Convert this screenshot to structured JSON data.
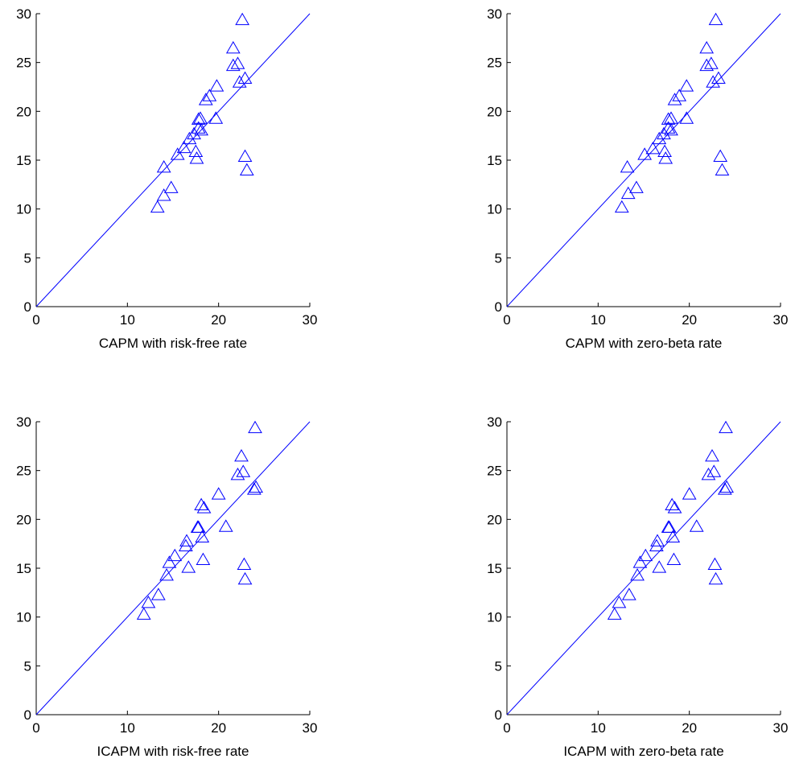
{
  "chart_data": [
    {
      "type": "scatter",
      "xlabel": "CAPM with risk-free rate",
      "ylabel": "",
      "xlim": [
        0,
        30
      ],
      "ylim": [
        0,
        30
      ],
      "xticks": [
        0,
        10,
        20,
        30
      ],
      "yticks": [
        0,
        5,
        10,
        15,
        20,
        25,
        30
      ],
      "marker": "triangle",
      "color": "#0000ff",
      "reference_line": {
        "from": [
          0,
          0
        ],
        "to": [
          30,
          30
        ]
      },
      "points": [
        [
          13.3,
          10.2
        ],
        [
          14.0,
          11.4
        ],
        [
          14.8,
          12.2
        ],
        [
          14.0,
          14.3
        ],
        [
          15.5,
          15.6
        ],
        [
          16.2,
          16.3
        ],
        [
          16.8,
          17.2
        ],
        [
          17.3,
          17.7
        ],
        [
          17.8,
          18.3
        ],
        [
          18.1,
          18.1
        ],
        [
          17.8,
          19.2
        ],
        [
          18.0,
          19.3
        ],
        [
          17.5,
          15.9
        ],
        [
          17.6,
          15.2
        ],
        [
          18.6,
          21.2
        ],
        [
          19.0,
          21.6
        ],
        [
          19.8,
          22.6
        ],
        [
          19.7,
          19.3
        ],
        [
          21.6,
          24.7
        ],
        [
          21.6,
          26.5
        ],
        [
          22.1,
          24.9
        ],
        [
          22.3,
          23.0
        ],
        [
          22.9,
          23.4
        ],
        [
          22.6,
          29.4
        ],
        [
          22.9,
          15.4
        ],
        [
          23.1,
          14.0
        ]
      ]
    },
    {
      "type": "scatter",
      "xlabel": "CAPM with zero-beta rate",
      "ylabel": "",
      "xlim": [
        0,
        30
      ],
      "ylim": [
        0,
        30
      ],
      "xticks": [
        0,
        10,
        20,
        30
      ],
      "yticks": [
        0,
        5,
        10,
        15,
        20,
        25,
        30
      ],
      "marker": "triangle",
      "color": "#0000ff",
      "reference_line": {
        "from": [
          0,
          0
        ],
        "to": [
          30,
          30
        ]
      },
      "points": [
        [
          12.6,
          10.2
        ],
        [
          13.3,
          11.6
        ],
        [
          14.2,
          12.2
        ],
        [
          13.2,
          14.3
        ],
        [
          15.1,
          15.6
        ],
        [
          16.0,
          16.2
        ],
        [
          16.7,
          17.2
        ],
        [
          17.2,
          17.7
        ],
        [
          17.7,
          18.3
        ],
        [
          18.0,
          18.1
        ],
        [
          17.7,
          19.2
        ],
        [
          18.0,
          19.3
        ],
        [
          17.3,
          15.9
        ],
        [
          17.4,
          15.2
        ],
        [
          18.4,
          21.2
        ],
        [
          18.9,
          21.6
        ],
        [
          19.7,
          22.6
        ],
        [
          19.7,
          19.3
        ],
        [
          21.9,
          24.7
        ],
        [
          21.9,
          26.5
        ],
        [
          22.4,
          24.9
        ],
        [
          22.6,
          23.0
        ],
        [
          23.2,
          23.4
        ],
        [
          22.9,
          29.4
        ],
        [
          23.4,
          15.4
        ],
        [
          23.6,
          14.0
        ]
      ]
    },
    {
      "type": "scatter",
      "xlabel": "ICAPM with risk-free rate",
      "ylabel": "",
      "xlim": [
        0,
        30
      ],
      "ylim": [
        0,
        30
      ],
      "xticks": [
        0,
        10,
        20,
        30
      ],
      "yticks": [
        0,
        5,
        10,
        15,
        20,
        25,
        30
      ],
      "marker": "triangle",
      "color": "#0000ff",
      "reference_line": {
        "from": [
          0,
          0
        ],
        "to": [
          30,
          30
        ]
      },
      "points": [
        [
          11.8,
          10.3
        ],
        [
          12.3,
          11.5
        ],
        [
          13.4,
          12.3
        ],
        [
          14.3,
          14.3
        ],
        [
          14.6,
          15.6
        ],
        [
          15.2,
          16.3
        ],
        [
          16.4,
          17.3
        ],
        [
          16.5,
          17.8
        ],
        [
          17.7,
          19.2
        ],
        [
          17.8,
          19.2
        ],
        [
          18.2,
          18.2
        ],
        [
          16.7,
          15.1
        ],
        [
          18.3,
          15.9
        ],
        [
          18.1,
          21.5
        ],
        [
          18.4,
          21.2
        ],
        [
          20.0,
          22.6
        ],
        [
          20.8,
          19.3
        ],
        [
          22.1,
          24.6
        ],
        [
          22.5,
          26.5
        ],
        [
          22.7,
          24.9
        ],
        [
          22.8,
          15.4
        ],
        [
          22.9,
          13.9
        ],
        [
          23.9,
          23.1
        ],
        [
          24.1,
          23.3
        ],
        [
          24.0,
          29.4
        ]
      ]
    },
    {
      "type": "scatter",
      "xlabel": "ICAPM with zero-beta rate",
      "ylabel": "",
      "xlim": [
        0,
        30
      ],
      "ylim": [
        0,
        30
      ],
      "xticks": [
        0,
        10,
        20,
        30
      ],
      "yticks": [
        0,
        5,
        10,
        15,
        20,
        25,
        30
      ],
      "marker": "triangle",
      "color": "#0000ff",
      "reference_line": {
        "from": [
          0,
          0
        ],
        "to": [
          30,
          30
        ]
      },
      "points": [
        [
          11.8,
          10.3
        ],
        [
          12.3,
          11.5
        ],
        [
          13.4,
          12.3
        ],
        [
          14.3,
          14.3
        ],
        [
          14.6,
          15.6
        ],
        [
          15.2,
          16.3
        ],
        [
          16.4,
          17.3
        ],
        [
          16.5,
          17.8
        ],
        [
          17.7,
          19.2
        ],
        [
          17.8,
          19.2
        ],
        [
          18.2,
          18.2
        ],
        [
          16.7,
          15.1
        ],
        [
          18.3,
          15.9
        ],
        [
          18.1,
          21.5
        ],
        [
          18.4,
          21.2
        ],
        [
          20.0,
          22.6
        ],
        [
          20.8,
          19.3
        ],
        [
          22.1,
          24.6
        ],
        [
          22.5,
          26.5
        ],
        [
          22.7,
          24.9
        ],
        [
          22.8,
          15.4
        ],
        [
          22.9,
          13.9
        ],
        [
          23.9,
          23.1
        ],
        [
          24.1,
          23.3
        ],
        [
          24.0,
          29.4
        ]
      ]
    }
  ]
}
